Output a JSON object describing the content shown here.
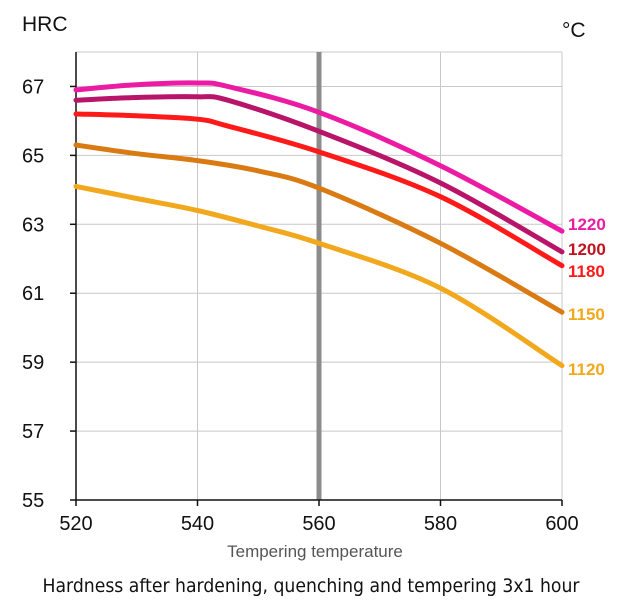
{
  "chart_data": {
    "type": "line",
    "title": "",
    "caption": "Hardness after hardening, quenching and tempering  3x1 hour",
    "xlabel": "Tempering temperature",
    "ylabel": "HRC",
    "unit_label": "°C",
    "xlim": [
      520,
      600
    ],
    "ylim": [
      55,
      68
    ],
    "x_ticks": [
      520,
      540,
      560,
      580,
      600
    ],
    "y_ticks": [
      55,
      57,
      59,
      61,
      63,
      65,
      67
    ],
    "grid": true,
    "reference_line_x": 560,
    "series": [
      {
        "name": "1220",
        "color": "#ec1ba4",
        "x": [
          520,
          530,
          540,
          545,
          560,
          580,
          600
        ],
        "y": [
          66.9,
          67.05,
          67.1,
          67.0,
          66.25,
          64.7,
          62.8
        ]
      },
      {
        "name": "1200",
        "color": "#b8146a",
        "x": [
          520,
          530,
          540,
          545,
          560,
          580,
          600
        ],
        "y": [
          66.6,
          66.68,
          66.7,
          66.6,
          65.7,
          64.2,
          62.2
        ]
      },
      {
        "name": "1180",
        "color": "#ff1a1a",
        "x": [
          520,
          530,
          540,
          545,
          560,
          580,
          600
        ],
        "y": [
          66.2,
          66.15,
          66.05,
          65.85,
          65.1,
          63.8,
          61.8
        ]
      },
      {
        "name": "1150",
        "color": "#d97a12",
        "x": [
          520,
          530,
          540,
          550,
          560,
          580,
          600
        ],
        "y": [
          65.3,
          65.05,
          64.85,
          64.55,
          64.05,
          62.45,
          60.45
        ]
      },
      {
        "name": "1120",
        "color": "#f2a81d",
        "x": [
          520,
          530,
          540,
          550,
          560,
          580,
          600
        ],
        "y": [
          64.1,
          63.75,
          63.4,
          62.95,
          62.45,
          61.15,
          58.9
        ]
      }
    ]
  },
  "series_label_colors": {
    "1220": "#ec1ba4",
    "1200": "#c0131f",
    "1180": "#ff1a1a",
    "1150": "#f2a81d",
    "1120": "#f2a81d"
  },
  "colors": {
    "grid": "#c8c8c8",
    "axis": "#111111",
    "reference_line": "#8c8c8c"
  }
}
